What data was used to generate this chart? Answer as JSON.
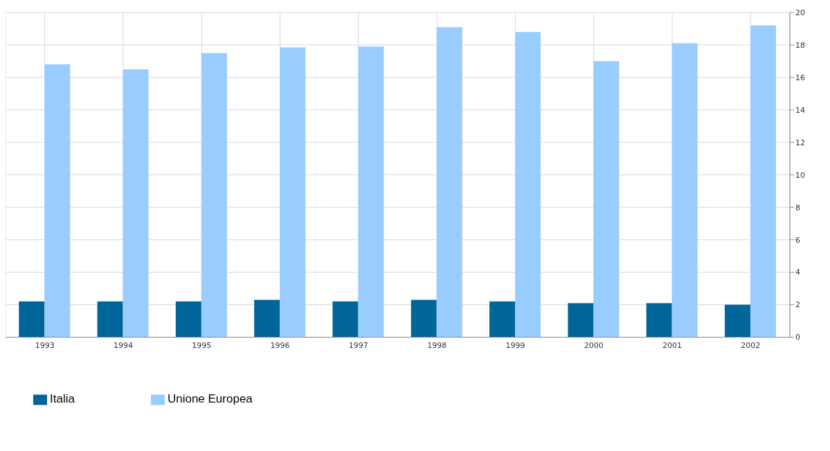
{
  "chart_data": {
    "type": "bar",
    "categories": [
      "1993",
      "1994",
      "1995",
      "1996",
      "1997",
      "1998",
      "1999",
      "2000",
      "2001",
      "2002"
    ],
    "series": [
      {
        "name": "Italia",
        "color": "#006699",
        "values": [
          2.2,
          2.2,
          2.2,
          2.3,
          2.2,
          2.3,
          2.2,
          2.1,
          2.1,
          2.0
        ]
      },
      {
        "name": "Unione Europea",
        "color": "#99ccff",
        "values": [
          16.8,
          16.5,
          17.5,
          17.85,
          17.9,
          19.1,
          18.8,
          17.0,
          18.1,
          19.2
        ]
      }
    ],
    "ylim": [
      0,
      20
    ],
    "yticks": [
      0,
      2,
      4,
      6,
      8,
      10,
      12,
      14,
      16,
      18,
      20
    ],
    "grid": true,
    "legend": "bottom left"
  }
}
